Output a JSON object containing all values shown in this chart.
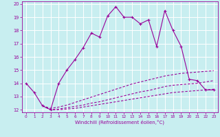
{
  "xlabel": "Windchill (Refroidissement éolien,°C)",
  "bg_color": "#c8eef0",
  "grid_color": "#ffffff",
  "line_color": "#990099",
  "xlim": [
    -0.5,
    23.5
  ],
  "ylim": [
    11.8,
    20.2
  ],
  "xticks": [
    0,
    1,
    2,
    3,
    4,
    5,
    6,
    7,
    8,
    9,
    10,
    11,
    12,
    13,
    14,
    15,
    16,
    17,
    18,
    19,
    20,
    21,
    22,
    23
  ],
  "yticks": [
    12,
    13,
    14,
    15,
    16,
    17,
    18,
    19,
    20
  ],
  "series1_x": [
    0,
    1,
    2,
    3,
    4,
    5,
    6,
    7,
    8,
    9,
    10,
    11,
    12,
    13,
    14,
    15,
    16,
    17,
    18,
    19,
    20,
    21,
    22,
    23
  ],
  "series1_y": [
    14.0,
    13.3,
    12.3,
    12.0,
    14.0,
    15.0,
    15.8,
    16.7,
    17.8,
    17.5,
    19.1,
    19.8,
    19.0,
    19.0,
    18.5,
    18.8,
    16.8,
    19.5,
    18.0,
    16.8,
    14.3,
    14.2,
    13.5,
    13.5
  ],
  "series2_x": [
    2,
    3,
    4,
    5,
    6,
    7,
    8,
    9,
    10,
    11,
    12,
    13,
    14,
    15,
    16,
    17,
    18,
    19,
    20,
    21,
    22,
    23
  ],
  "series2_y": [
    12.3,
    12.1,
    12.2,
    12.35,
    12.55,
    12.75,
    12.95,
    13.15,
    13.35,
    13.55,
    13.75,
    13.95,
    14.1,
    14.25,
    14.4,
    14.55,
    14.65,
    14.75,
    14.8,
    14.85,
    14.9,
    14.95
  ],
  "series3_x": [
    2,
    3,
    4,
    5,
    6,
    7,
    8,
    9,
    10,
    11,
    12,
    13,
    14,
    15,
    16,
    17,
    18,
    19,
    20,
    21,
    22,
    23
  ],
  "series3_y": [
    12.3,
    12.0,
    12.05,
    12.15,
    12.25,
    12.35,
    12.5,
    12.6,
    12.75,
    12.9,
    13.05,
    13.2,
    13.35,
    13.45,
    13.6,
    13.75,
    13.85,
    13.9,
    13.95,
    14.0,
    14.1,
    14.2
  ],
  "series4_x": [
    2,
    3,
    4,
    5,
    6,
    7,
    8,
    9,
    10,
    11,
    12,
    13,
    14,
    15,
    16,
    17,
    18,
    19,
    20,
    21,
    22,
    23
  ],
  "series4_y": [
    12.3,
    12.0,
    12.0,
    12.05,
    12.1,
    12.2,
    12.3,
    12.4,
    12.5,
    12.6,
    12.7,
    12.8,
    12.9,
    13.0,
    13.1,
    13.2,
    13.3,
    13.35,
    13.4,
    13.45,
    13.5,
    13.55
  ]
}
